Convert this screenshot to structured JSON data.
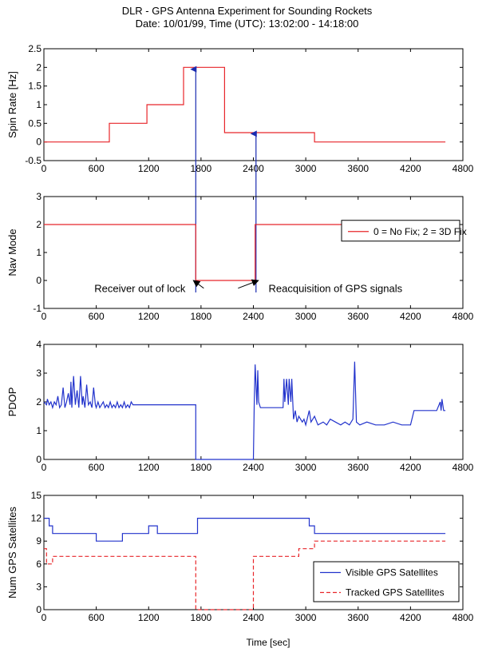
{
  "title_line1": "DLR - GPS Antenna Experiment for Sounding Rockets",
  "title_line2": "Date: 10/01/99,  Time (UTC): 13:02:00 - 14:18:00",
  "xlabel": "Time [sec]",
  "colors": {
    "red": "#e8262a",
    "blue": "#2233cc",
    "annotation": "#000000",
    "arrow_blue": "#1a2bb0"
  },
  "chart_data": [
    {
      "type": "line",
      "ylabel": "Spin Rate [Hz]",
      "xlim": [
        0,
        4800
      ],
      "ylim": [
        -0.5,
        2.5
      ],
      "xticks": [
        0,
        600,
        1200,
        1800,
        2400,
        3000,
        3600,
        4200,
        4800
      ],
      "yticks": [
        -0.5,
        0,
        0.5,
        1,
        1.5,
        2,
        2.5
      ],
      "ytick_labels": [
        "-0.5",
        "0",
        "0.5",
        "1",
        "1.5",
        "2",
        "2.5"
      ],
      "grid": false,
      "series": [
        {
          "color": "red",
          "step": true,
          "x": [
            0,
            750,
            750,
            1180,
            1180,
            1600,
            1600,
            2070,
            2070,
            3100,
            3100,
            4600
          ],
          "y": [
            0,
            0,
            0.5,
            0.5,
            1.0,
            1.0,
            2.0,
            2.0,
            0.25,
            0.25,
            0,
            0
          ]
        }
      ],
      "arrows": [
        {
          "x": 1740,
          "from_y": -0.5,
          "to_y": 1.95
        },
        {
          "x": 2430,
          "from_y": -0.5,
          "to_y": 0.22
        }
      ]
    },
    {
      "type": "line",
      "ylabel": "Nav Mode",
      "xlim": [
        0,
        4800
      ],
      "ylim": [
        -1,
        3
      ],
      "xticks": [
        0,
        600,
        1200,
        1800,
        2400,
        3000,
        3600,
        4200,
        4800
      ],
      "yticks": [
        -1,
        0,
        1,
        2,
        3
      ],
      "ytick_labels": [
        "-1",
        "0",
        "1",
        "2",
        "3"
      ],
      "grid": false,
      "legend": {
        "entries": [
          "0 = No Fix;  2 = 3D Fix"
        ],
        "position": "right"
      },
      "series": [
        {
          "name": "0 = No Fix;  2 = 3D Fix",
          "color": "red",
          "step": true,
          "x": [
            0,
            1740,
            1740,
            2420,
            2420,
            4600
          ],
          "y": [
            2,
            2,
            0,
            0,
            2,
            2
          ]
        }
      ],
      "annotations": [
        {
          "text": "Receiver out of lock",
          "x": 1100,
          "y": -0.42,
          "arrow_to": [
            1740,
            0
          ]
        },
        {
          "text": "Reacquisition of GPS signals",
          "x": 3340,
          "y": -0.42,
          "arrow_to": [
            2430,
            0
          ]
        }
      ]
    },
    {
      "type": "line",
      "ylabel": "PDOP",
      "xlim": [
        0,
        4800
      ],
      "ylim": [
        0,
        4
      ],
      "xticks": [
        0,
        600,
        1200,
        1800,
        2400,
        3000,
        3600,
        4200,
        4800
      ],
      "yticks": [
        0,
        1,
        2,
        3,
        4
      ],
      "ytick_labels": [
        "0",
        "1",
        "2",
        "3",
        "4"
      ],
      "grid": false,
      "series": [
        {
          "color": "blue",
          "x": [
            0,
            30,
            40,
            60,
            80,
            100,
            120,
            140,
            160,
            180,
            200,
            220,
            240,
            260,
            280,
            300,
            310,
            320,
            340,
            360,
            380,
            400,
            420,
            440,
            450,
            470,
            490,
            510,
            530,
            550,
            570,
            590,
            600,
            620,
            640,
            660,
            680,
            700,
            720,
            740,
            760,
            780,
            800,
            820,
            840,
            860,
            880,
            900,
            920,
            940,
            960,
            980,
            1000,
            1020,
            1050,
            1100,
            1740,
            1740,
            2400,
            2410,
            2420,
            2440,
            2450,
            2460,
            2480,
            2600,
            2740,
            2750,
            2760,
            2780,
            2800,
            2810,
            2830,
            2840,
            2860,
            2880,
            2900,
            2920,
            2960,
            2980,
            3000,
            3040,
            3060,
            3100,
            3140,
            3200,
            3240,
            3280,
            3340,
            3400,
            3450,
            3500,
            3540,
            3560,
            3580,
            3620,
            3700,
            3800,
            3900,
            4000,
            4100,
            4200,
            4240,
            4300,
            4400,
            4500,
            4540,
            4550,
            4560,
            4580,
            4600
          ],
          "y": [
            2.0,
            1.9,
            2.1,
            1.9,
            2.0,
            1.8,
            2.0,
            1.9,
            2.2,
            1.8,
            1.9,
            2.5,
            1.8,
            2.0,
            2.3,
            1.9,
            2.7,
            1.8,
            2.9,
            1.9,
            2.4,
            1.8,
            2.9,
            1.9,
            2.2,
            1.8,
            2.6,
            1.9,
            2.0,
            1.8,
            2.5,
            1.9,
            1.8,
            2.0,
            1.8,
            1.9,
            2.0,
            1.8,
            1.9,
            1.8,
            2.0,
            1.8,
            1.9,
            1.8,
            2.0,
            1.8,
            1.9,
            1.8,
            2.0,
            1.8,
            1.9,
            1.8,
            2.0,
            1.9,
            1.9,
            1.9,
            1.9,
            0,
            0,
            2.0,
            3.3,
            1.9,
            3.1,
            2.0,
            1.8,
            1.8,
            1.8,
            2.8,
            2.0,
            2.8,
            1.9,
            2.8,
            2.0,
            2.8,
            1.4,
            1.7,
            1.3,
            1.5,
            1.3,
            1.4,
            1.2,
            1.7,
            1.3,
            1.5,
            1.2,
            1.3,
            1.2,
            1.4,
            1.3,
            1.2,
            1.3,
            1.2,
            1.4,
            3.4,
            1.3,
            1.2,
            1.3,
            1.2,
            1.2,
            1.3,
            1.2,
            1.2,
            1.7,
            1.7,
            1.7,
            1.7,
            2.0,
            1.7,
            2.1,
            1.7,
            1.7
          ]
        }
      ]
    },
    {
      "type": "line",
      "ylabel": "Num GPS Satellites",
      "xlim": [
        0,
        4800
      ],
      "ylim": [
        0,
        15
      ],
      "xticks": [
        0,
        600,
        1200,
        1800,
        2400,
        3000,
        3600,
        4200,
        4800
      ],
      "yticks": [
        0,
        3,
        6,
        9,
        12,
        15
      ],
      "ytick_labels": [
        "0",
        "3",
        "6",
        "9",
        "12",
        "15"
      ],
      "grid": false,
      "legend": {
        "entries": [
          "Visible GPS Satellites",
          "Tracked GPS Satellites"
        ],
        "position": "lower-right"
      },
      "series": [
        {
          "name": "Visible GPS Satellites",
          "color": "blue",
          "step": true,
          "x": [
            0,
            60,
            60,
            100,
            100,
            600,
            600,
            900,
            900,
            1200,
            1200,
            1300,
            1300,
            1760,
            1760,
            3040,
            3040,
            3100,
            3100,
            4600
          ],
          "y": [
            12,
            12,
            11,
            11,
            10,
            10,
            9,
            9,
            10,
            10,
            11,
            11,
            10,
            10,
            12,
            12,
            11,
            11,
            10,
            10
          ]
        },
        {
          "name": "Tracked GPS Satellites",
          "color": "red",
          "dashed": true,
          "step": true,
          "x": [
            0,
            30,
            30,
            100,
            100,
            600,
            600,
            1740,
            1740,
            2400,
            2400,
            2500,
            2500,
            2920,
            2920,
            3100,
            3100,
            4600
          ],
          "y": [
            8,
            8,
            6,
            6,
            7,
            7,
            7,
            7,
            0,
            0,
            7,
            7,
            7,
            7,
            8,
            8,
            9,
            9
          ]
        }
      ]
    }
  ]
}
